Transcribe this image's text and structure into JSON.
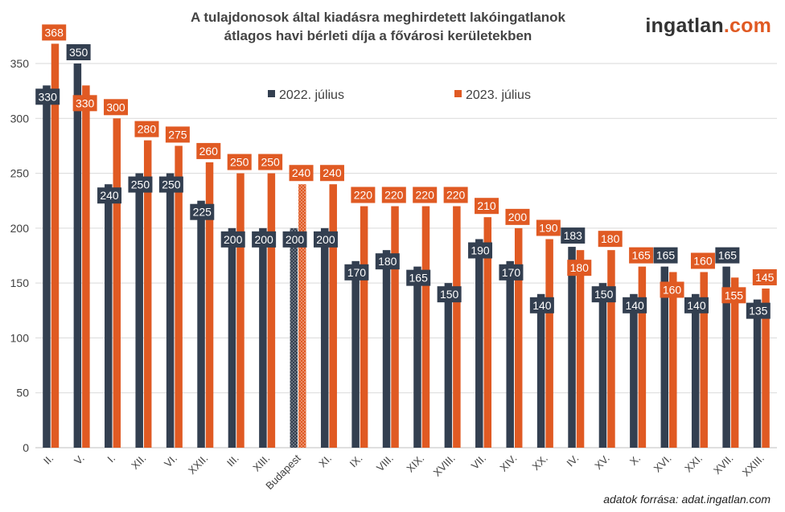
{
  "title_line1": "A tulajdonosok által kiadásra meghirdetett lakóingatlanok",
  "title_line2": "átlagos havi bérleti díja a fővárosi kerületekben",
  "logo_part1": "ingatlan",
  "logo_part2": ".com",
  "source": "adatok forrása: adat.ingatlan.com",
  "colors": {
    "series_2022": "#333f50",
    "series_2023": "#e05a23",
    "highlight_category": "Budapest"
  },
  "chart_data": {
    "type": "bar",
    "categories": [
      "II.",
      "V.",
      "I.",
      "XII.",
      "VI.",
      "XXII.",
      "III.",
      "XIII.",
      "Budapest",
      "XI.",
      "IX.",
      "VIII.",
      "XIX.",
      "XVIII.",
      "VII.",
      "XIV.",
      "XX.",
      "IV.",
      "XV.",
      "X.",
      "XVI.",
      "XXI.",
      "XVII.",
      "XXIII."
    ],
    "series": [
      {
        "name": "2022. július",
        "values": [
          330,
          350,
          240,
          250,
          250,
          225,
          200,
          200,
          200,
          200,
          170,
          180,
          165,
          150,
          190,
          170,
          140,
          183,
          150,
          140,
          165,
          140,
          165,
          135
        ]
      },
      {
        "name": "2023. július",
        "values": [
          368,
          330,
          300,
          280,
          275,
          260,
          250,
          250,
          240,
          240,
          220,
          220,
          220,
          220,
          210,
          200,
          190,
          180,
          180,
          165,
          160,
          160,
          155,
          145
        ]
      }
    ],
    "ylim": [
      0,
      350
    ],
    "yticks": [
      0,
      50,
      100,
      150,
      200,
      250,
      300,
      350
    ],
    "grid": true,
    "legend": "top-center"
  }
}
